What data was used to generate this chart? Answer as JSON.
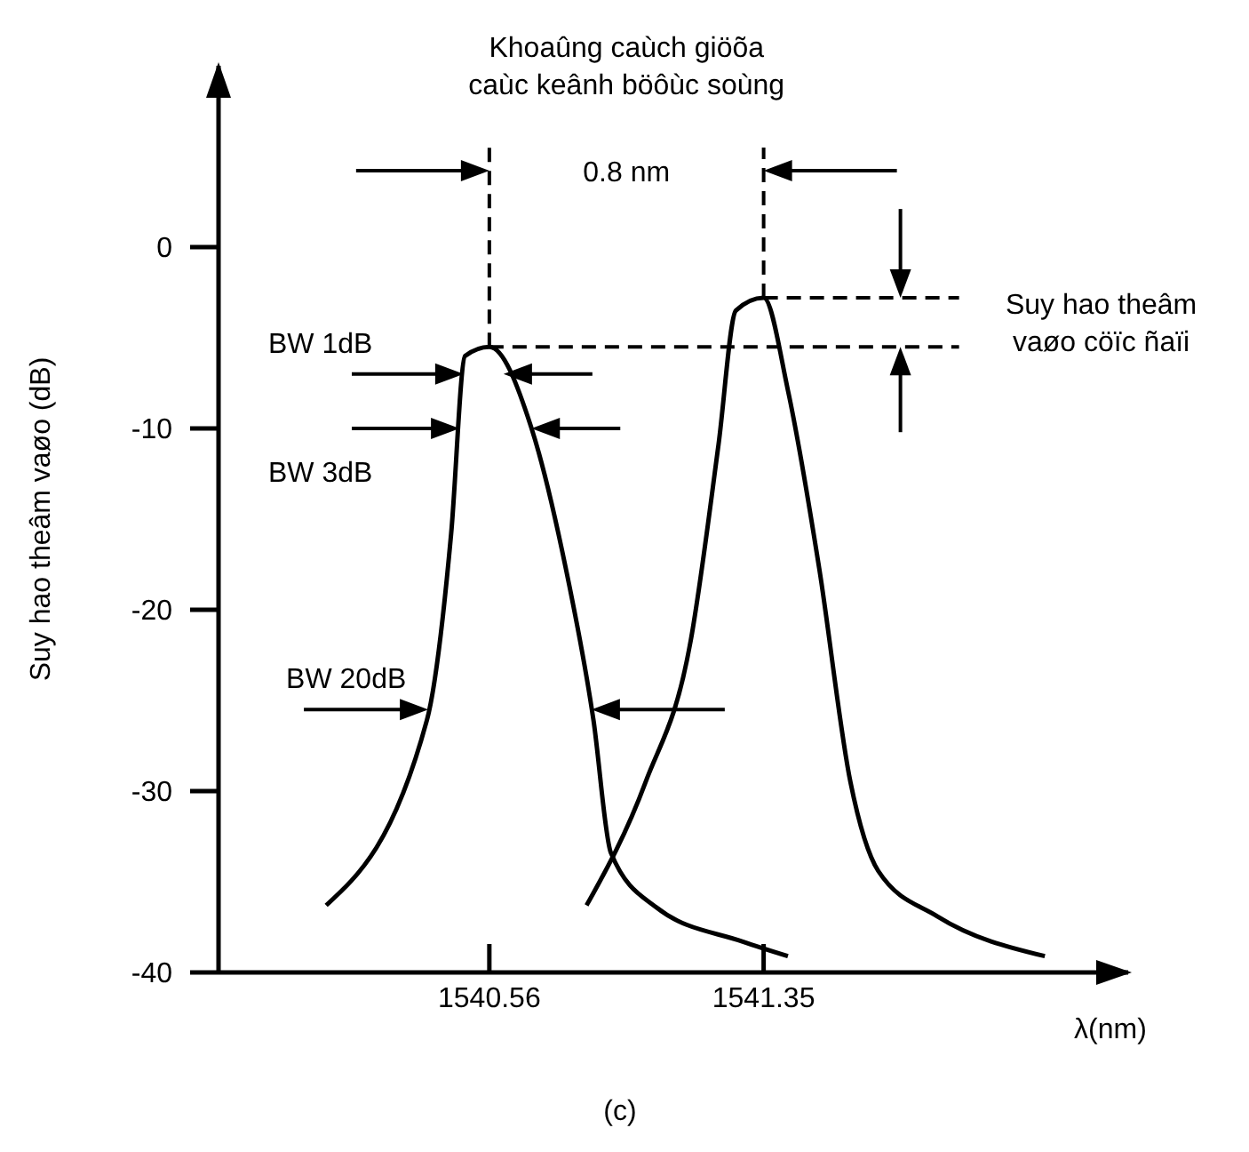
{
  "chart_data": {
    "type": "line",
    "xlabel": "λ(nm)",
    "ylabel": "Suy hao theâm vaøo (dB)",
    "xlim": [
      1539.78,
      1542.4
    ],
    "xticks": [
      1540.56,
      1541.35
    ],
    "ylim": [
      -40,
      10
    ],
    "yticks": [
      0,
      -10,
      -20,
      -30,
      -40
    ],
    "grid": false,
    "marker": "none",
    "line_style": "solid",
    "ref_lines": [
      {
        "axis": "x",
        "value": 1540.56,
        "line_style": "dashed"
      },
      {
        "axis": "x",
        "value": 1541.35,
        "line_style": "dashed"
      },
      {
        "axis": "y",
        "value": -5.5,
        "line_style": "dashed"
      },
      {
        "axis": "y",
        "value": -2.8,
        "line_style": "dashed"
      }
    ],
    "series": [
      {
        "color": "#000000",
        "x": [
          1540.09,
          1540.38,
          1540.45,
          1540.49,
          1540.56,
          1540.68,
          1540.78,
          1540.86,
          1540.91,
          1541.04,
          1541.29,
          1541.42
        ],
        "values": [
          -36.3,
          -26.1,
          -15.8,
          -6.0,
          -5.5,
          -9.9,
          -17.7,
          -26.1,
          -33.4,
          -36.4,
          -38.3,
          -39.1
        ]
      },
      {
        "color": "#000000",
        "x": [
          1540.84,
          1541.01,
          1541.14,
          1541.22,
          1541.27,
          1541.35,
          1541.42,
          1541.51,
          1541.6,
          1541.68,
          1541.85,
          1542.16
        ],
        "values": [
          -36.3,
          -29.5,
          -21.7,
          -10.9,
          -3.5,
          -2.8,
          -7.9,
          -17.7,
          -29.5,
          -34.4,
          -36.9,
          -39.1
        ]
      }
    ],
    "annotations": [
      "Khoaûng caùch giöõa\ncaùc keânh böôùc soùng",
      "0.8 nm",
      "Suy hao theâm\nvaøo cöïc ñaïi",
      "BW 1dB",
      "BW 3dB",
      "BW 20dB",
      "(c)"
    ]
  }
}
